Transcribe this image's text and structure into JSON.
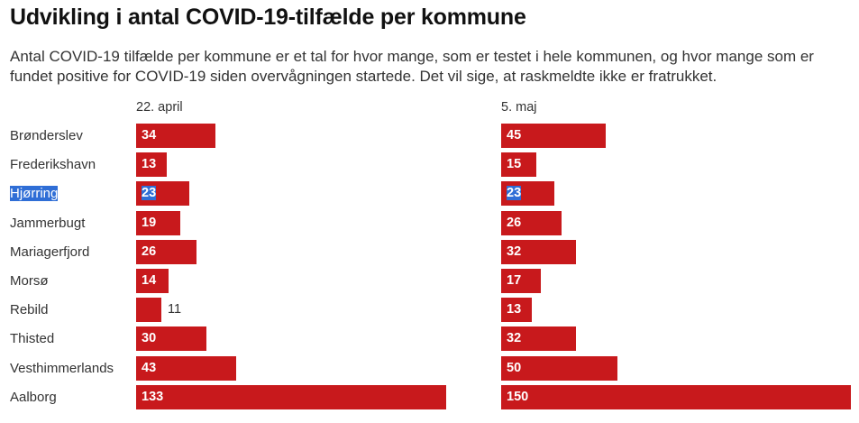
{
  "title": "Udvikling i antal COVID-19-tilfælde per kommune",
  "subtitle": "Antal COVID-19 tilfælde per kommune er et tal for hvor mange, som er testet i hele kommunen, og hvor mange som er fundet positive for COVID-19 siden overvågningen startede. Det vil sige, at raskmeldte ikke er fratrukket.",
  "colors": {
    "bar": "#c8191c",
    "selection": "#2f6ed6"
  },
  "chart_data": {
    "type": "bar",
    "orientation": "horizontal",
    "title": "Udvikling i antal COVID-19-tilfælde per kommune",
    "categories": [
      "Brønderslev",
      "Frederikshavn",
      "Hjørring",
      "Jammerbugt",
      "Mariagerfjord",
      "Morsø",
      "Rebild",
      "Thisted",
      "Vesthimmerlands",
      "Aalborg"
    ],
    "series": [
      {
        "name": "22. april",
        "values": [
          34,
          13,
          23,
          19,
          26,
          14,
          11,
          30,
          43,
          133
        ]
      },
      {
        "name": "5. maj",
        "values": [
          45,
          15,
          23,
          26,
          32,
          17,
          13,
          32,
          50,
          150
        ]
      }
    ],
    "xlim": [
      0,
      150
    ],
    "grid": false,
    "legend": "none"
  }
}
